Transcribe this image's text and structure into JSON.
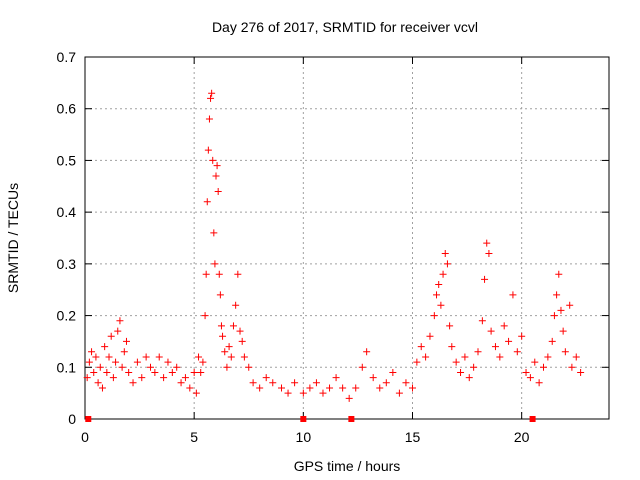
{
  "chart_data": {
    "type": "scatter",
    "title": "Day 276 of 2017, SRMTID for receiver vcvl",
    "xlabel": "GPS time / hours",
    "ylabel": "SRMTID / TECUs",
    "xlim": [
      0,
      24
    ],
    "ylim": [
      0,
      0.7
    ],
    "x_ticks": [
      0,
      5,
      10,
      15,
      20
    ],
    "y_ticks": [
      0,
      0.1,
      0.2,
      0.3,
      0.4,
      0.5,
      0.6,
      0.7
    ],
    "x_tick_labels": [
      "0",
      "5",
      "10",
      "15",
      "20"
    ],
    "y_tick_labels": [
      "0",
      "0.1",
      "0.2",
      "0.3",
      "0.4",
      "0.5",
      "0.6",
      "0.7"
    ],
    "grid": true,
    "marker": "+",
    "color": "#ff0000",
    "series": [
      {
        "name": "SRMTID",
        "points": [
          [
            0.1,
            0.08
          ],
          [
            0.2,
            0.11
          ],
          [
            0.3,
            0.13
          ],
          [
            0.4,
            0.09
          ],
          [
            0.5,
            0.12
          ],
          [
            0.6,
            0.07
          ],
          [
            0.7,
            0.1
          ],
          [
            0.8,
            0.06
          ],
          [
            0.9,
            0.14
          ],
          [
            1.0,
            0.09
          ],
          [
            1.1,
            0.12
          ],
          [
            1.2,
            0.16
          ],
          [
            1.3,
            0.08
          ],
          [
            1.4,
            0.11
          ],
          [
            1.5,
            0.17
          ],
          [
            1.6,
            0.19
          ],
          [
            1.7,
            0.1
          ],
          [
            1.8,
            0.13
          ],
          [
            1.9,
            0.15
          ],
          [
            2.0,
            0.09
          ],
          [
            2.2,
            0.07
          ],
          [
            2.4,
            0.11
          ],
          [
            2.6,
            0.08
          ],
          [
            2.8,
            0.12
          ],
          [
            3.0,
            0.1
          ],
          [
            3.2,
            0.09
          ],
          [
            3.4,
            0.12
          ],
          [
            3.6,
            0.08
          ],
          [
            3.8,
            0.11
          ],
          [
            4.0,
            0.09
          ],
          [
            4.2,
            0.1
          ],
          [
            4.4,
            0.07
          ],
          [
            4.6,
            0.08
          ],
          [
            4.8,
            0.06
          ],
          [
            5.0,
            0.09
          ],
          [
            5.1,
            0.05
          ],
          [
            5.2,
            0.12
          ],
          [
            5.3,
            0.09
          ],
          [
            5.4,
            0.11
          ],
          [
            5.5,
            0.2
          ],
          [
            5.55,
            0.28
          ],
          [
            5.6,
            0.42
          ],
          [
            5.65,
            0.52
          ],
          [
            5.7,
            0.58
          ],
          [
            5.75,
            0.62
          ],
          [
            5.8,
            0.63
          ],
          [
            5.85,
            0.5
          ],
          [
            5.9,
            0.36
          ],
          [
            5.95,
            0.3
          ],
          [
            6.0,
            0.47
          ],
          [
            6.05,
            0.49
          ],
          [
            6.1,
            0.44
          ],
          [
            6.15,
            0.28
          ],
          [
            6.2,
            0.24
          ],
          [
            6.25,
            0.18
          ],
          [
            6.3,
            0.16
          ],
          [
            6.4,
            0.13
          ],
          [
            6.5,
            0.1
          ],
          [
            6.6,
            0.14
          ],
          [
            6.7,
            0.12
          ],
          [
            6.8,
            0.18
          ],
          [
            6.9,
            0.22
          ],
          [
            7.0,
            0.28
          ],
          [
            7.1,
            0.17
          ],
          [
            7.2,
            0.15
          ],
          [
            7.3,
            0.12
          ],
          [
            7.5,
            0.1
          ],
          [
            7.7,
            0.07
          ],
          [
            8.0,
            0.06
          ],
          [
            8.3,
            0.08
          ],
          [
            8.6,
            0.07
          ],
          [
            9.0,
            0.06
          ],
          [
            9.3,
            0.05
          ],
          [
            9.6,
            0.07
          ],
          [
            10.0,
            0.05
          ],
          [
            10.3,
            0.06
          ],
          [
            10.6,
            0.07
          ],
          [
            10.9,
            0.05
          ],
          [
            11.2,
            0.06
          ],
          [
            11.5,
            0.08
          ],
          [
            11.8,
            0.06
          ],
          [
            12.1,
            0.04
          ],
          [
            12.4,
            0.06
          ],
          [
            12.7,
            0.1
          ],
          [
            12.9,
            0.13
          ],
          [
            13.2,
            0.08
          ],
          [
            13.5,
            0.06
          ],
          [
            13.8,
            0.07
          ],
          [
            14.1,
            0.09
          ],
          [
            14.4,
            0.05
          ],
          [
            14.7,
            0.07
          ],
          [
            15.0,
            0.06
          ],
          [
            15.2,
            0.11
          ],
          [
            15.4,
            0.14
          ],
          [
            15.6,
            0.12
          ],
          [
            15.8,
            0.16
          ],
          [
            16.0,
            0.2
          ],
          [
            16.1,
            0.24
          ],
          [
            16.2,
            0.26
          ],
          [
            16.3,
            0.22
          ],
          [
            16.4,
            0.28
          ],
          [
            16.5,
            0.32
          ],
          [
            16.6,
            0.3
          ],
          [
            16.7,
            0.18
          ],
          [
            16.8,
            0.14
          ],
          [
            17.0,
            0.11
          ],
          [
            17.2,
            0.09
          ],
          [
            17.4,
            0.12
          ],
          [
            17.6,
            0.08
          ],
          [
            17.8,
            0.1
          ],
          [
            18.0,
            0.13
          ],
          [
            18.2,
            0.19
          ],
          [
            18.3,
            0.27
          ],
          [
            18.4,
            0.34
          ],
          [
            18.5,
            0.32
          ],
          [
            18.6,
            0.17
          ],
          [
            18.8,
            0.14
          ],
          [
            19.0,
            0.12
          ],
          [
            19.2,
            0.18
          ],
          [
            19.4,
            0.15
          ],
          [
            19.6,
            0.24
          ],
          [
            19.8,
            0.13
          ],
          [
            20.0,
            0.16
          ],
          [
            20.2,
            0.09
          ],
          [
            20.4,
            0.08
          ],
          [
            20.6,
            0.11
          ],
          [
            20.8,
            0.07
          ],
          [
            21.0,
            0.1
          ],
          [
            21.2,
            0.12
          ],
          [
            21.4,
            0.15
          ],
          [
            21.5,
            0.2
          ],
          [
            21.6,
            0.24
          ],
          [
            21.7,
            0.28
          ],
          [
            21.8,
            0.21
          ],
          [
            21.9,
            0.17
          ],
          [
            22.0,
            0.13
          ],
          [
            22.2,
            0.22
          ],
          [
            22.3,
            0.1
          ],
          [
            22.5,
            0.12
          ],
          [
            22.7,
            0.09
          ]
        ]
      }
    ],
    "gap_markers_x": [
      0.15,
      10.0,
      12.2,
      20.5
    ]
  }
}
